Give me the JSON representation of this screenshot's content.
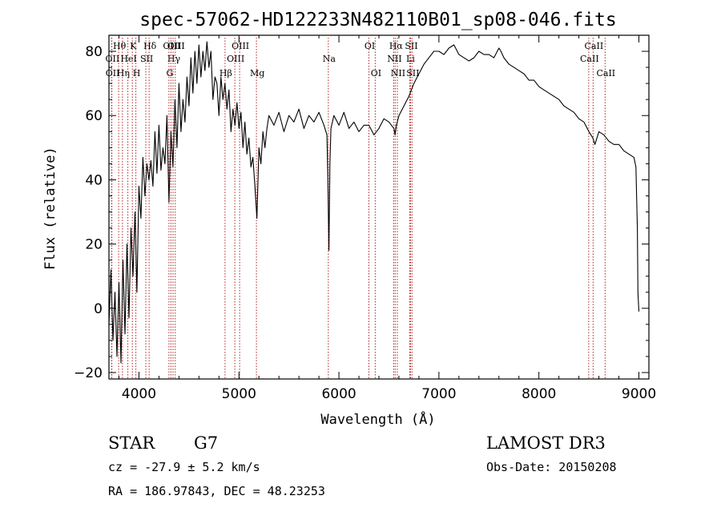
{
  "colors": {
    "axis": "#000000",
    "spectrum": "#000000",
    "line_marker": "#b22222"
  },
  "chart_data": {
    "type": "line",
    "title": "spec-57062-HD122233N482110B01_sp08-046.fits",
    "xlabel": "Wavelength (Å)",
    "ylabel": "Flux (relative)",
    "xlim": [
      3700,
      9100
    ],
    "ylim": [
      -22,
      85
    ],
    "xticks": [
      4000,
      5000,
      6000,
      7000,
      8000,
      9000
    ],
    "yticks": [
      -20,
      0,
      20,
      40,
      60,
      80
    ],
    "grid": false,
    "series": [
      {
        "x": [
          3700,
          3720,
          3740,
          3760,
          3780,
          3800,
          3820,
          3840,
          3860,
          3880,
          3900,
          3920,
          3940,
          3960,
          3980,
          4000,
          4020,
          4040,
          4060,
          4080,
          4100,
          4120,
          4140,
          4160,
          4180,
          4200,
          4220,
          4240,
          4260,
          4280,
          4300,
          4320,
          4340,
          4360,
          4380,
          4400,
          4420,
          4440,
          4460,
          4480,
          4500,
          4520,
          4540,
          4560,
          4580,
          4600,
          4620,
          4640,
          4660,
          4680,
          4700,
          4720,
          4740,
          4760,
          4780,
          4800,
          4820,
          4840,
          4860,
          4880,
          4900,
          4920,
          4940,
          4960,
          4980,
          5000,
          5020,
          5040,
          5060,
          5080,
          5100,
          5120,
          5140,
          5160,
          5180,
          5200,
          5220,
          5240,
          5260,
          5280,
          5300,
          5350,
          5400,
          5450,
          5500,
          5550,
          5600,
          5650,
          5700,
          5750,
          5800,
          5850,
          5880,
          5890,
          5900,
          5910,
          5920,
          5950,
          6000,
          6050,
          6100,
          6150,
          6200,
          6250,
          6300,
          6350,
          6400,
          6450,
          6500,
          6550,
          6562,
          6575,
          6600,
          6650,
          6700,
          6750,
          6800,
          6850,
          6900,
          6950,
          7000,
          7050,
          7100,
          7150,
          7200,
          7250,
          7300,
          7350,
          7400,
          7450,
          7500,
          7550,
          7600,
          7620,
          7650,
          7700,
          7750,
          7800,
          7850,
          7900,
          7950,
          8000,
          8050,
          8100,
          8150,
          8200,
          8250,
          8300,
          8350,
          8400,
          8450,
          8500,
          8540,
          8560,
          8600,
          8650,
          8700,
          8750,
          8800,
          8850,
          8900,
          8950,
          8970,
          8985,
          8990,
          9000
        ],
        "y": [
          -5,
          12,
          -10,
          5,
          -15,
          8,
          -17,
          15,
          -8,
          20,
          -3,
          25,
          10,
          30,
          5,
          38,
          28,
          47,
          35,
          45,
          40,
          46,
          38,
          55,
          42,
          57,
          43,
          50,
          45,
          60,
          33,
          55,
          44,
          65,
          50,
          70,
          55,
          65,
          58,
          72,
          63,
          78,
          67,
          80,
          70,
          82,
          72,
          80,
          74,
          83,
          75,
          80,
          65,
          72,
          70,
          60,
          72,
          65,
          70,
          62,
          68,
          55,
          62,
          57,
          64,
          56,
          61,
          50,
          58,
          48,
          53,
          44,
          47,
          38,
          28,
          50,
          45,
          55,
          50,
          56,
          60,
          57,
          61,
          55,
          60,
          58,
          62,
          56,
          60,
          58,
          61,
          57,
          54,
          40,
          18,
          45,
          56,
          60,
          57,
          61,
          56,
          58,
          55,
          57,
          57,
          54,
          56,
          59,
          58,
          56,
          54,
          57,
          60,
          63,
          66,
          70,
          73,
          76,
          78,
          80,
          80,
          79,
          81,
          82,
          79,
          78,
          77,
          78,
          80,
          79,
          79,
          78,
          81,
          80,
          78,
          76,
          75,
          74,
          73,
          71,
          71,
          69,
          68,
          67,
          66,
          65,
          63,
          62,
          61,
          59,
          58,
          55,
          53,
          51,
          55,
          54,
          52,
          51,
          51,
          49,
          48,
          47,
          44,
          25,
          5,
          -1
        ]
      }
    ],
    "line_markers": [
      {
        "label": "Hθ",
        "x": 3797,
        "row": 1
      },
      {
        "label": "OII",
        "x": 3727,
        "row": 2
      },
      {
        "label": "OII",
        "x": 3729,
        "row": 3
      },
      {
        "label": "Hη",
        "x": 3835,
        "row": 3
      },
      {
        "label": "HeI",
        "x": 3889,
        "row": 2
      },
      {
        "label": "K",
        "x": 3934,
        "row": 1
      },
      {
        "label": "H",
        "x": 3969,
        "row": 3
      },
      {
        "label": "SII",
        "x": 4069,
        "row": 2
      },
      {
        "label": "Hδ",
        "x": 4102,
        "row": 1
      },
      {
        "label": "G",
        "x": 4300,
        "row": 3
      },
      {
        "label": "OIII",
        "x": 4320,
        "row": 1
      },
      {
        "label": "Hγ",
        "x": 4341,
        "row": 2
      },
      {
        "label": "OIII",
        "x": 4363,
        "row": 1
      },
      {
        "label": "Hβ",
        "x": 4861,
        "row": 3
      },
      {
        "label": "OIII",
        "x": 4959,
        "row": 2
      },
      {
        "label": "OIII",
        "x": 5007,
        "row": 1
      },
      {
        "label": "Mg",
        "x": 5175,
        "row": 3
      },
      {
        "label": "Na",
        "x": 5894,
        "row": 2
      },
      {
        "label": "OI",
        "x": 6300,
        "row": 1
      },
      {
        "label": "OI",
        "x": 6363,
        "row": 3
      },
      {
        "label": "Hα",
        "x": 6563,
        "row": 1
      },
      {
        "label": "NII",
        "x": 6548,
        "row": 2
      },
      {
        "label": "NII",
        "x": 6584,
        "row": 3
      },
      {
        "label": "Li",
        "x": 6708,
        "row": 2
      },
      {
        "label": "SII",
        "x": 6716,
        "row": 1
      },
      {
        "label": "SII",
        "x": 6731,
        "row": 3
      },
      {
        "label": "CaII",
        "x": 8498,
        "row": 2
      },
      {
        "label": "CaII",
        "x": 8542,
        "row": 1
      },
      {
        "label": "CaII",
        "x": 8662,
        "row": 3
      }
    ]
  },
  "info": {
    "object_class": "STAR",
    "subclass": "G7",
    "redshift": "cz = -27.9 ± 5.2 km/s",
    "coords": "RA = 186.97843, DEC =  48.23253",
    "survey": "LAMOST DR3",
    "obs_date": "Obs-Date: 20150208"
  }
}
